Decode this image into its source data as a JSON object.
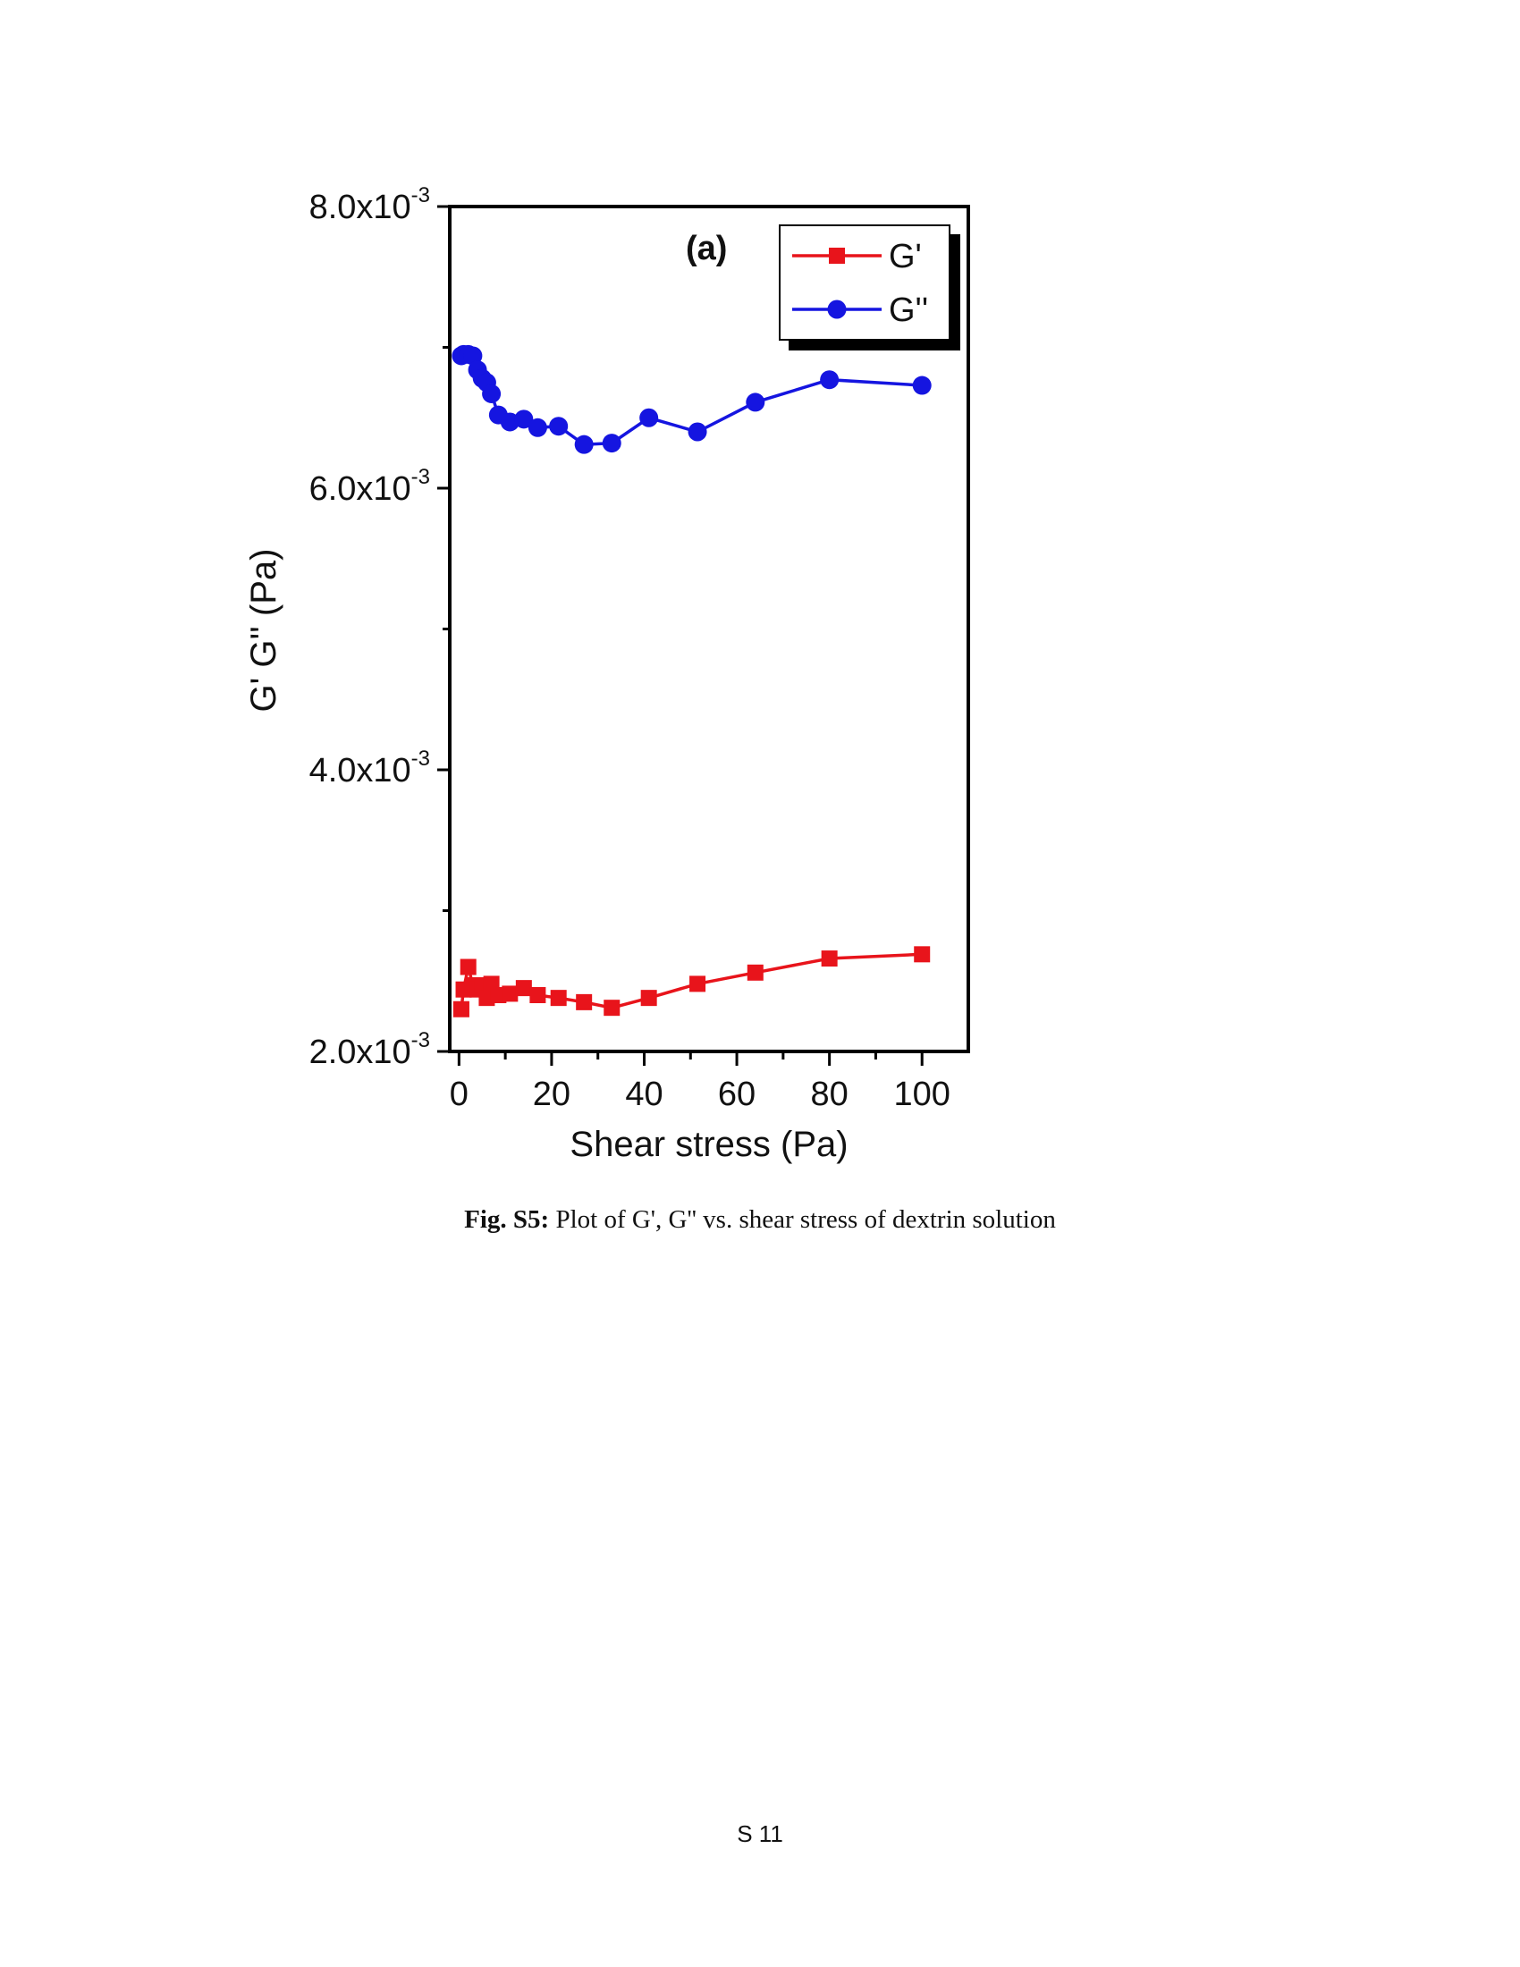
{
  "chart_data": {
    "type": "line",
    "panel_label": "(a)",
    "xlabel": "Shear stress (Pa)",
    "ylabel": "G' G'' (Pa)",
    "xlim": [
      -2,
      110
    ],
    "ylim": [
      0.002,
      0.008
    ],
    "x_ticks": [
      0,
      20,
      40,
      60,
      80,
      100
    ],
    "x_tick_labels": [
      "0",
      "20",
      "40",
      "60",
      "80",
      "100"
    ],
    "y_ticks": [
      0.002,
      0.004,
      0.006,
      0.008
    ],
    "y_tick_labels": [
      {
        "mantissa": "2.0x10",
        "exponent": "-3"
      },
      {
        "mantissa": "4.0x10",
        "exponent": "-3"
      },
      {
        "mantissa": "6.0x10",
        "exponent": "-3"
      },
      {
        "mantissa": "8.0x10",
        "exponent": "-3"
      }
    ],
    "legend_position": "top-right",
    "series": [
      {
        "name": "G'",
        "color": "#e8141b",
        "marker": "square",
        "x": [
          0.5,
          1.0,
          2.0,
          3.0,
          4.0,
          5.0,
          6.0,
          7.0,
          8.5,
          11.0,
          14.0,
          17.0,
          21.5,
          27.0,
          33.0,
          41.0,
          51.5,
          64.0,
          80.0,
          100.0
        ],
        "y": [
          0.0023,
          0.00244,
          0.0026,
          0.00247,
          0.00244,
          0.00247,
          0.00238,
          0.00248,
          0.0024,
          0.00241,
          0.00245,
          0.0024,
          0.00238,
          0.00235,
          0.00231,
          0.00238,
          0.00248,
          0.00256,
          0.00266,
          0.00269
        ]
      },
      {
        "name": "G''",
        "color": "#1515e0",
        "marker": "circle",
        "x": [
          0.5,
          1.0,
          2.0,
          3.0,
          4.0,
          5.0,
          6.0,
          7.0,
          8.5,
          11.0,
          14.0,
          17.0,
          21.5,
          27.0,
          33.0,
          41.0,
          51.5,
          64.0,
          80.0,
          100.0
        ],
        "y": [
          0.00694,
          0.00695,
          0.00695,
          0.00694,
          0.00684,
          0.00678,
          0.00675,
          0.00667,
          0.00652,
          0.00647,
          0.00649,
          0.00643,
          0.00644,
          0.00631,
          0.00632,
          0.0065,
          0.0064,
          0.00661,
          0.00677,
          0.00673
        ]
      }
    ]
  },
  "caption": {
    "label": "Fig. S5:",
    "text": " Plot of G', G'' vs. shear stress of dextrin solution"
  },
  "page_number": "S 11"
}
